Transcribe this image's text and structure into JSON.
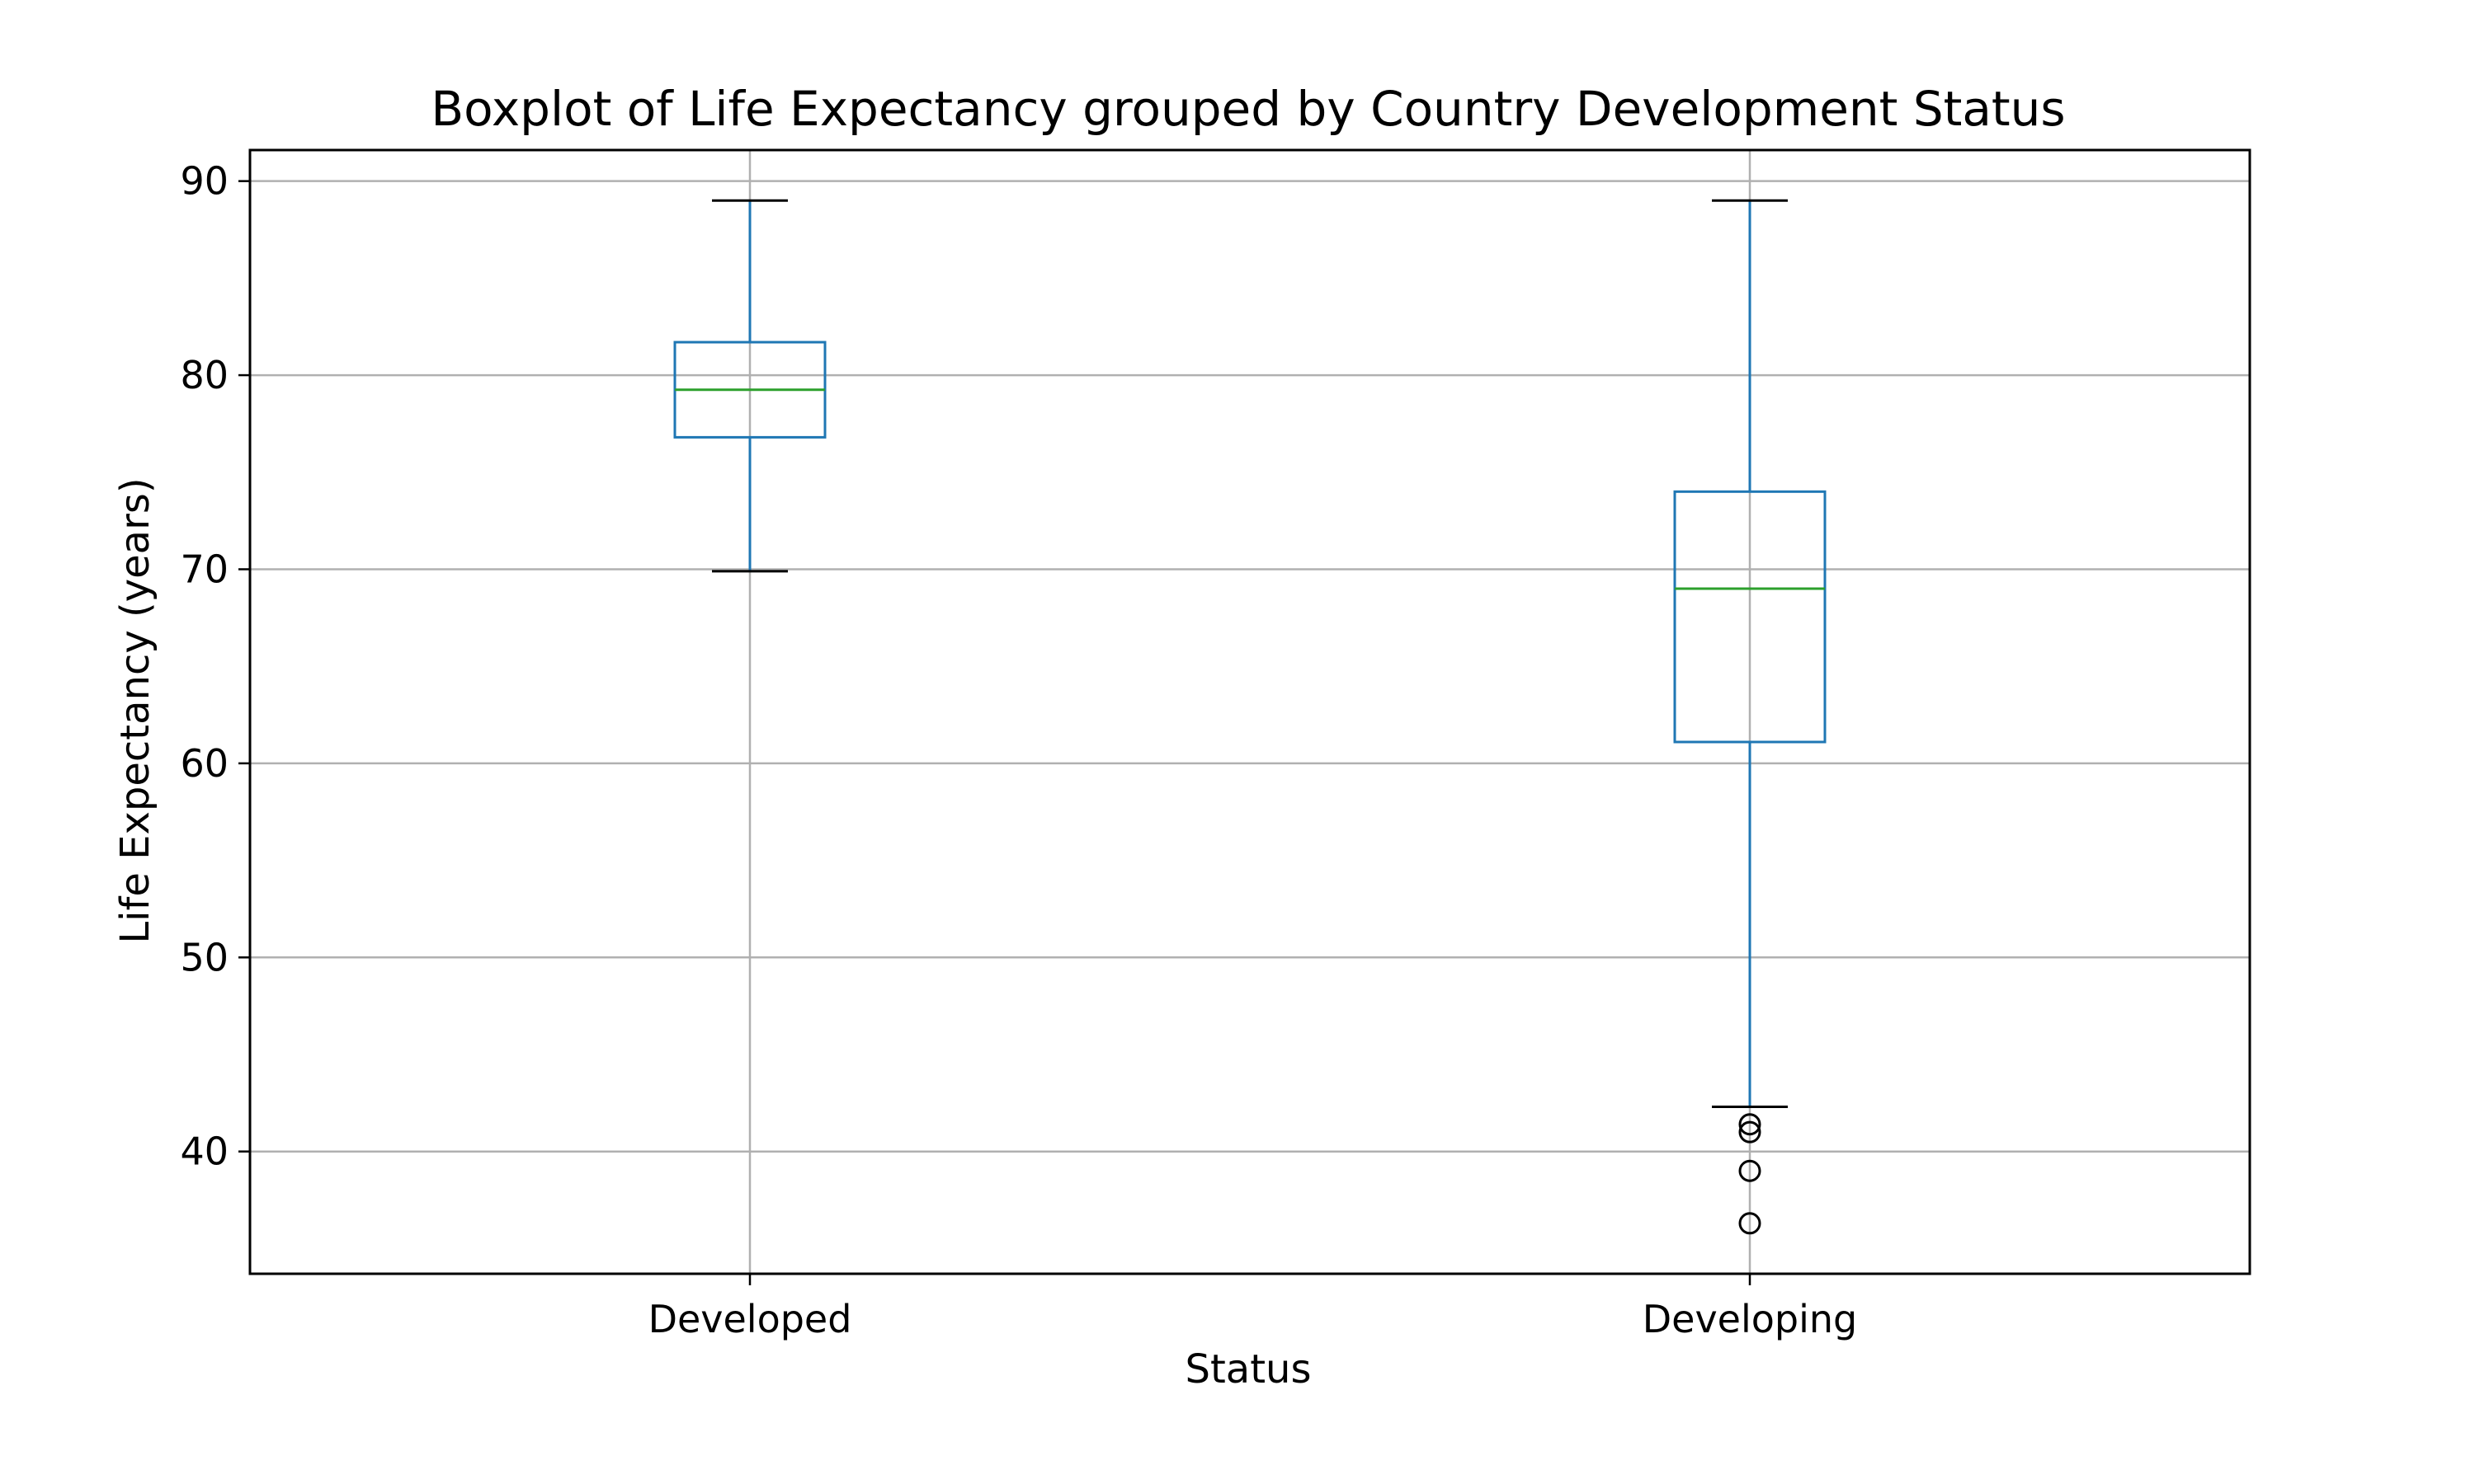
{
  "chart_data": {
    "type": "boxplot",
    "title": "Boxplot of Life Expectancy grouped by Country Development Status",
    "xlabel": "Status",
    "ylabel": "Life Expectancy (years)",
    "categories": [
      "Developed",
      "Developing"
    ],
    "ylim": [
      33.7,
      91.6
    ],
    "yticks": [
      40,
      50,
      60,
      70,
      80,
      90
    ],
    "grid": true,
    "boxes": [
      {
        "category": "Developed",
        "whisker_low": 69.9,
        "q1": 76.8,
        "median": 79.25,
        "q3": 81.7,
        "whisker_high": 89.0,
        "outliers": []
      },
      {
        "category": "Developing",
        "whisker_low": 42.3,
        "q1": 61.1,
        "median": 69.0,
        "q3": 74.0,
        "whisker_high": 89.0,
        "outliers": [
          41.4,
          41.0,
          39.0,
          36.3
        ]
      }
    ],
    "colors": {
      "box": "#1f77b4",
      "median": "#2ca02c",
      "caps": "#000000",
      "grid": "#b0b0b0",
      "axes": "#000000",
      "outlier": "#000000"
    }
  }
}
